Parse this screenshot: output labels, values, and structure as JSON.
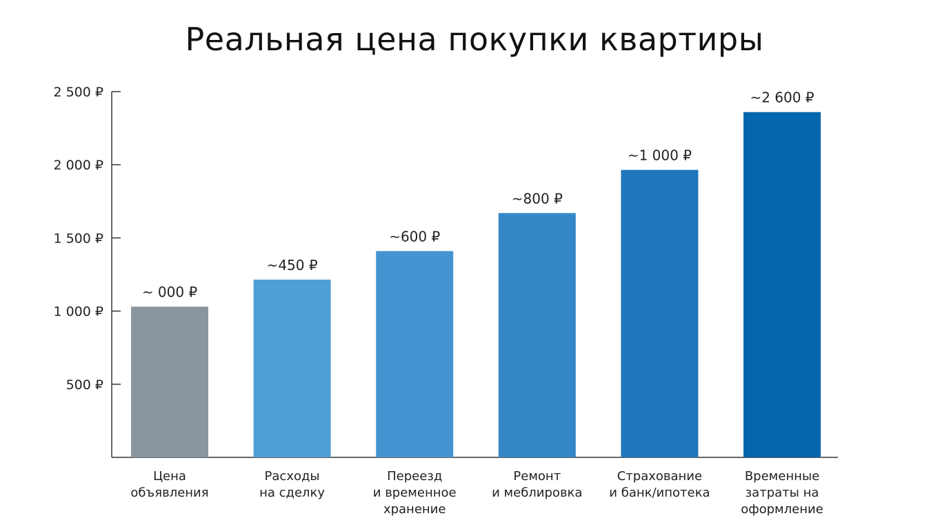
{
  "chart_data": {
    "type": "bar",
    "title": "Реальная цена покупки квартиры",
    "xlabel": "",
    "ylabel": "",
    "ylim": [
      0,
      2500
    ],
    "y_ticks": [
      500,
      1000,
      1500,
      2000,
      2500
    ],
    "y_tick_labels": [
      "500 ₽",
      "1 000 ₽",
      "1 500 ₽",
      "2 000 ₽",
      "2 500 ₽"
    ],
    "grid": false,
    "categories": [
      [
        "Цена",
        "объявления"
      ],
      [
        "Расходы",
        "на сделку"
      ],
      [
        "Переезд",
        "и временное",
        "хранение"
      ],
      [
        "Ремонт",
        "и меблировка"
      ],
      [
        "Страхование",
        "и банк/ипотека"
      ],
      [
        "Временные",
        "затраты на",
        "оформление"
      ]
    ],
    "values": [
      1030,
      1215,
      1410,
      1670,
      1965,
      2360
    ],
    "value_labels": [
      "~ 000 ₽",
      "~450 ₽",
      "~600 ₽",
      "~800 ₽",
      "~1 000 ₽",
      "~2 600 ₽"
    ],
    "colors": [
      "#8a959e",
      "#4f9fd6",
      "#4494d1",
      "#3488c8",
      "#1f78bc",
      "#0466ad"
    ]
  }
}
